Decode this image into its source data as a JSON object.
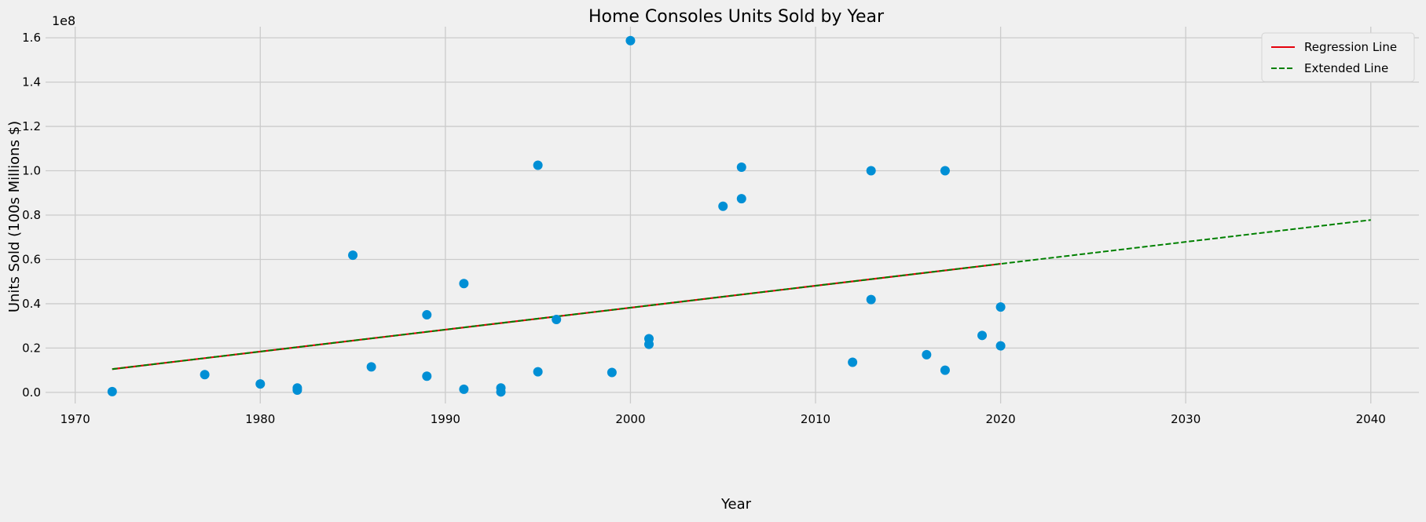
{
  "chart_data": {
    "type": "scatter",
    "title": "Home Consoles Units Sold by Year",
    "xlabel": "Year",
    "ylabel": "Units Sold (100s Millions $)",
    "y_offset_label": "1e8",
    "xlim": [
      1968.4,
      2042.6
    ],
    "ylim": [
      -5000000,
      165000000
    ],
    "x_ticks": [
      1970,
      1980,
      1990,
      2000,
      2010,
      2020,
      2030,
      2040
    ],
    "x_tick_labels": [
      "1970",
      "1980",
      "1990",
      "2000",
      "2010",
      "2020",
      "2030",
      "2040"
    ],
    "y_ticks": [
      0,
      20000000,
      40000000,
      60000000,
      80000000,
      100000000,
      120000000,
      140000000,
      160000000
    ],
    "y_tick_labels": [
      "0.0",
      "0.2",
      "0.4",
      "0.6",
      "0.8",
      "1.0",
      "1.2",
      "1.4",
      "1.6"
    ],
    "grid": true,
    "legend_position": "top-right",
    "series": [
      {
        "type": "scatter",
        "color": "#008fd5",
        "points": [
          [
            1972,
            350000
          ],
          [
            1977,
            8000000
          ],
          [
            1980,
            3800000
          ],
          [
            1982,
            2000000
          ],
          [
            1982,
            1000000
          ],
          [
            1985,
            61900000
          ],
          [
            1986,
            11500000
          ],
          [
            1989,
            35000000
          ],
          [
            1989,
            7300000
          ],
          [
            1991,
            49100000
          ],
          [
            1991,
            1400000
          ],
          [
            1993,
            2000000
          ],
          [
            1993,
            200000
          ],
          [
            1995,
            102500000
          ],
          [
            1995,
            9300000
          ],
          [
            1996,
            32900000
          ],
          [
            1999,
            9000000
          ],
          [
            2000,
            158700000
          ],
          [
            2001,
            24200000
          ],
          [
            2001,
            21700000
          ],
          [
            2005,
            84000000
          ],
          [
            2006,
            101600000
          ],
          [
            2006,
            87400000
          ],
          [
            2012,
            13600000
          ],
          [
            2013,
            100000000
          ],
          [
            2013,
            41900000
          ],
          [
            2016,
            17000000
          ],
          [
            2017,
            100000000
          ],
          [
            2017,
            10000000
          ],
          [
            2019,
            25700000
          ],
          [
            2020,
            38500000
          ],
          [
            2020,
            21000000
          ]
        ]
      },
      {
        "type": "line",
        "name": "Regression Line",
        "color": "#e5000b",
        "dash": "solid",
        "x": [
          1972,
          2020
        ],
        "y": [
          10500000,
          58000000
        ]
      },
      {
        "type": "line",
        "name": "Extended Line",
        "color": "#008000",
        "dash": "dashed",
        "x": [
          1972,
          2040
        ],
        "y": [
          10500000,
          77800000
        ]
      }
    ]
  }
}
